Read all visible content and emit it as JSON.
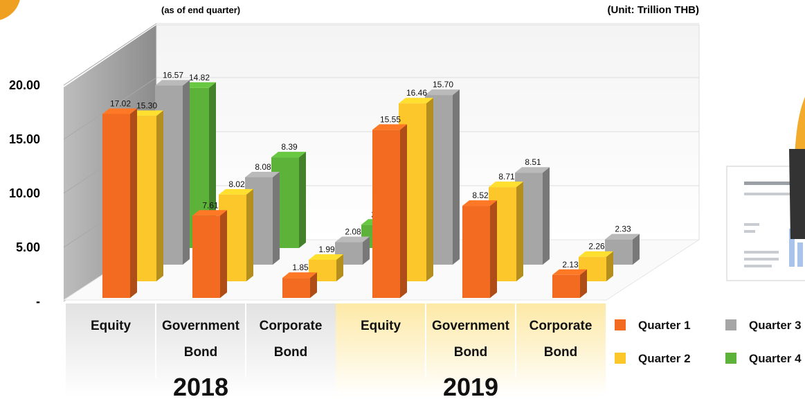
{
  "chart_data": {
    "type": "bar3d",
    "subtitle": "(as of end quarter)",
    "unit_note": "(Unit: Trillion THB)",
    "categories": [
      "Equity",
      "Government Bond",
      "Corporate Bond",
      "Equity",
      "Government Bond",
      "Corporate Bond"
    ],
    "group_labels": [
      "2018",
      "2019"
    ],
    "series": [
      {
        "name": "Quarter 1",
        "color": "#f26b21",
        "values": [
          17.02,
          7.61,
          1.85,
          15.55,
          8.52,
          2.13
        ],
        "value_labels": [
          "17.02",
          "7.61",
          "1.85",
          "15.55",
          "8.52",
          "2.13"
        ]
      },
      {
        "name": "Quarter 2",
        "color": "#fcc72a",
        "values": [
          15.3,
          8.02,
          1.99,
          16.46,
          8.71,
          2.26
        ],
        "value_labels": [
          "15.30",
          "8.02",
          "1.99",
          "16.46",
          "8.71",
          "2.26"
        ]
      },
      {
        "name": "Quarter 3",
        "color": "#a6a6a6",
        "values": [
          16.57,
          8.08,
          2.08,
          15.7,
          8.51,
          2.33
        ],
        "value_labels": [
          "16.57",
          "8.08",
          "2.08",
          "15.70",
          "8.51",
          "2.33"
        ]
      },
      {
        "name": "Quarter 4",
        "color": "#5db33a",
        "values": [
          14.82,
          8.39,
          2.16,
          null,
          null,
          null
        ],
        "value_labels": [
          "14.82",
          "8.39",
          "2.16",
          null,
          null,
          null
        ]
      }
    ],
    "ylim": [
      0,
      20
    ],
    "yticks": [
      {
        "value": 0,
        "label": "-"
      },
      {
        "value": 5,
        "label": "5.00"
      },
      {
        "value": 10,
        "label": "10.00"
      },
      {
        "value": 15,
        "label": "15.00"
      },
      {
        "value": 20,
        "label": "20.00"
      }
    ],
    "grid": true
  }
}
